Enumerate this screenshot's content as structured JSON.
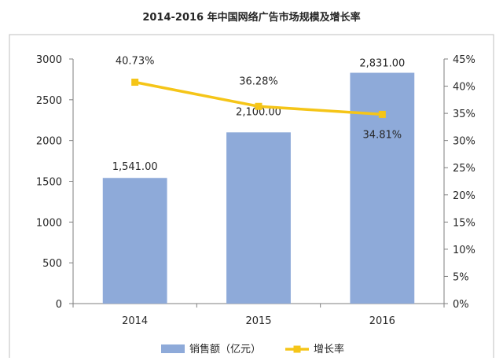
{
  "chart_data": {
    "type": "bar",
    "title": "2014-2016 年中国网络广告市场规模及增长率",
    "categories": [
      "2014",
      "2015",
      "2016"
    ],
    "series": [
      {
        "name": "销售额（亿元）",
        "type": "bar",
        "axis": "left",
        "values": [
          1541.0,
          2100.0,
          2831.0
        ],
        "labels": [
          "1,541.00",
          "2,100.00",
          "2,831.00"
        ]
      },
      {
        "name": "增长率",
        "type": "line",
        "axis": "right",
        "values": [
          40.73,
          36.28,
          34.81
        ],
        "labels": [
          "40.73%",
          "36.28%",
          "34.81%"
        ]
      }
    ],
    "left_axis": {
      "range": [
        0,
        3000
      ],
      "ticks": [
        0,
        500,
        1000,
        1500,
        2000,
        2500,
        3000
      ],
      "tick_labels": [
        "0",
        "500",
        "1000",
        "1500",
        "2000",
        "2500",
        "3000"
      ]
    },
    "right_axis": {
      "range": [
        0,
        45
      ],
      "ticks": [
        0,
        5,
        10,
        15,
        20,
        25,
        30,
        35,
        40,
        45
      ],
      "tick_labels": [
        "0%",
        "5%",
        "10%",
        "15%",
        "20%",
        "25%",
        "30%",
        "35%",
        "40%",
        "45%"
      ]
    },
    "grid": false,
    "legend_position": "bottom",
    "colors": {
      "bar": "#8eaad9",
      "line": "#f5c518",
      "axis": "#7f7f7f",
      "text": "#262626"
    }
  }
}
